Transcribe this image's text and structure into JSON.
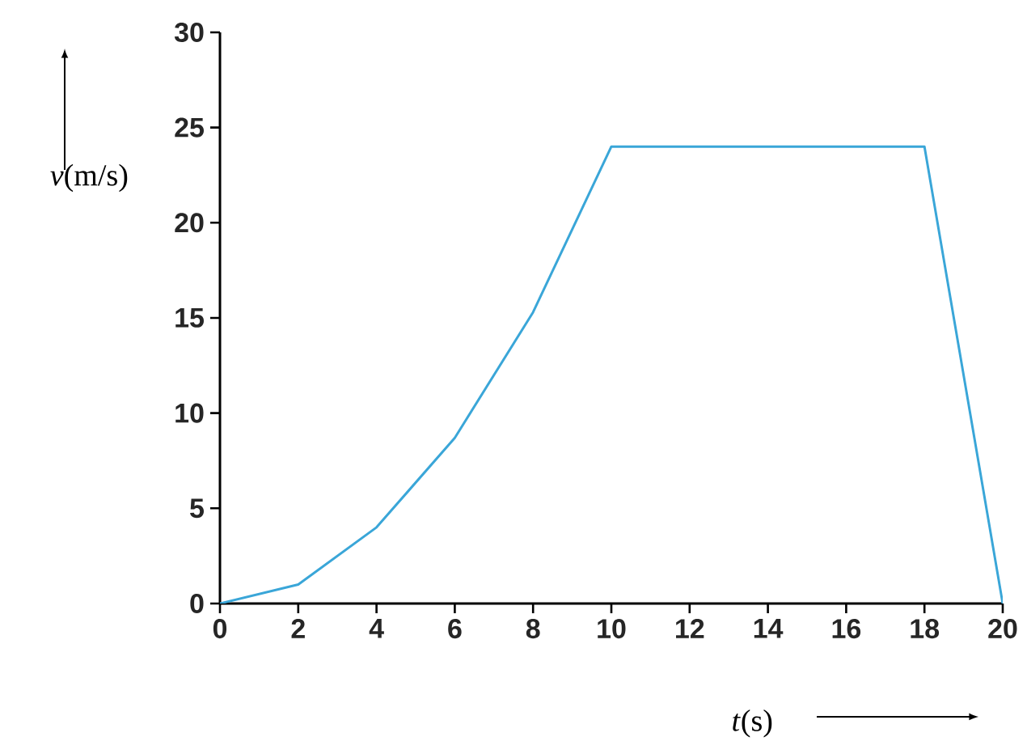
{
  "chart_data": {
    "type": "line",
    "xlabel": "*t*(s)",
    "ylabel": "*v*(m/s)",
    "x": [
      0,
      2,
      4,
      6,
      8,
      10,
      18,
      20
    ],
    "values": [
      0,
      1,
      4,
      8.7,
      15.3,
      24,
      24,
      0
    ],
    "color": "#3aa6d8",
    "marker": "none",
    "line_style": "solid",
    "xlim": [
      0,
      20
    ],
    "ylim": [
      0,
      30
    ],
    "xticks": [
      0,
      2,
      4,
      6,
      8,
      10,
      12,
      14,
      16,
      18,
      20
    ],
    "yticks": [
      0,
      5,
      10,
      15,
      20,
      25,
      30
    ]
  }
}
